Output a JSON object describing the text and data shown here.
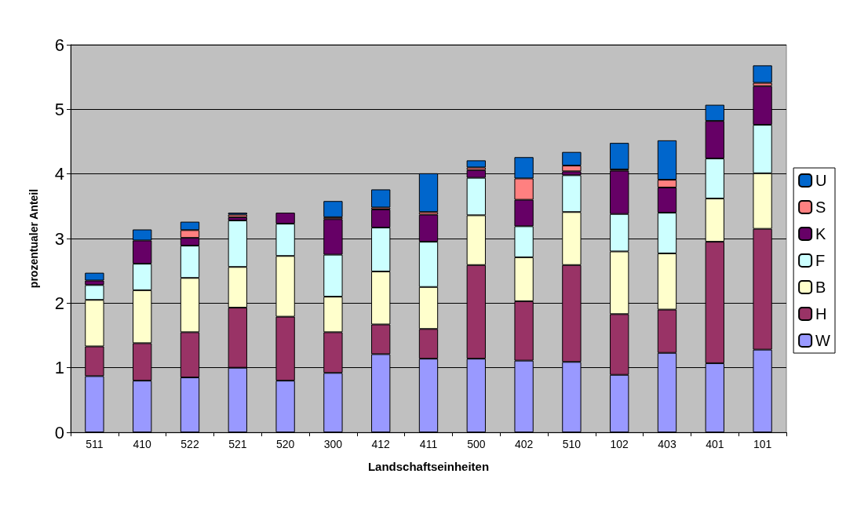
{
  "chart_data": {
    "type": "bar",
    "stacked": true,
    "xlabel": "Landschaftseinheiten",
    "ylabel": "prozentualer Anteil",
    "categories": [
      "511",
      "410",
      "522",
      "521",
      "520",
      "300",
      "412",
      "411",
      "500",
      "402",
      "510",
      "102",
      "403",
      "401",
      "101"
    ],
    "series": [
      {
        "name": "W",
        "color": "#9999ff",
        "values": [
          0.87,
          0.8,
          0.85,
          1.0,
          0.8,
          0.92,
          1.21,
          1.14,
          1.14,
          1.11,
          1.09,
          0.89,
          1.23,
          1.07,
          1.28
        ]
      },
      {
        "name": "H",
        "color": "#993366",
        "values": [
          0.46,
          0.58,
          0.7,
          0.93,
          0.99,
          0.63,
          0.46,
          0.46,
          1.45,
          0.92,
          1.5,
          0.94,
          0.67,
          1.88,
          1.87
        ]
      },
      {
        "name": "B",
        "color": "#ffffcc",
        "values": [
          0.72,
          0.82,
          0.84,
          0.63,
          0.94,
          0.55,
          0.82,
          0.65,
          0.77,
          0.68,
          0.82,
          0.97,
          0.87,
          0.67,
          0.86
        ]
      },
      {
        "name": "F",
        "color": "#ccffff",
        "values": [
          0.23,
          0.41,
          0.5,
          0.72,
          0.5,
          0.65,
          0.68,
          0.7,
          0.58,
          0.48,
          0.57,
          0.58,
          0.63,
          0.62,
          0.75
        ]
      },
      {
        "name": "K",
        "color": "#660066",
        "values": [
          0.07,
          0.36,
          0.12,
          0.05,
          0.17,
          0.55,
          0.28,
          0.42,
          0.12,
          0.41,
          0.06,
          0.67,
          0.39,
          0.58,
          0.6
        ]
      },
      {
        "name": "S",
        "color": "#ff8080",
        "values": [
          0,
          0,
          0.12,
          0.04,
          0,
          0.03,
          0.03,
          0.04,
          0.04,
          0.33,
          0.09,
          0.02,
          0.12,
          0,
          0.05
        ]
      },
      {
        "name": "U",
        "color": "#0066cc",
        "values": [
          0.12,
          0.17,
          0.13,
          0.03,
          0,
          0.25,
          0.28,
          0.6,
          0.11,
          0.33,
          0.21,
          0.41,
          0.61,
          0.25,
          0.27
        ]
      }
    ],
    "ylim": [
      0,
      6
    ],
    "yticks": [
      0,
      1,
      2,
      3,
      4,
      5,
      6
    ],
    "grid": "y",
    "legend": "right"
  }
}
